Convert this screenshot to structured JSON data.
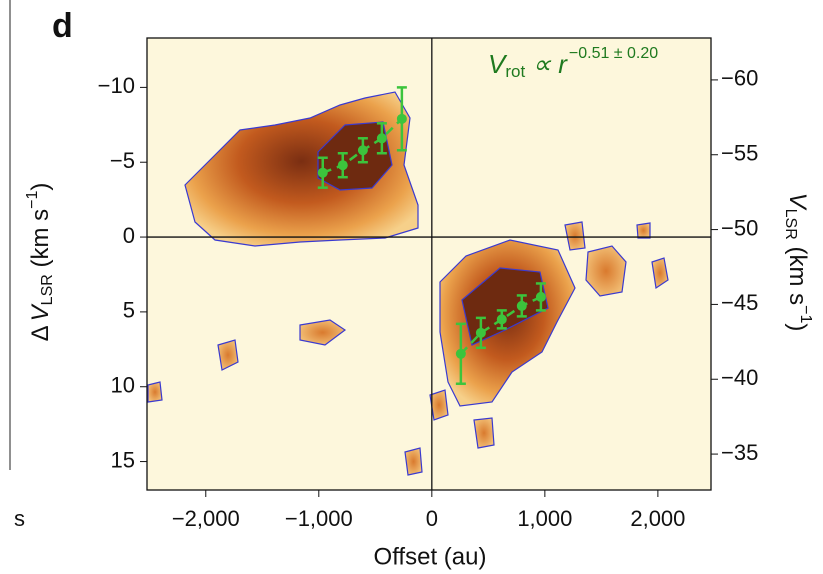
{
  "chart_data": {
    "type": "scatter",
    "panel_label": "d",
    "edge_text": "s",
    "annotation": {
      "base": "V",
      "sub": "rot",
      "mid": " ∝ r",
      "sup": "−0.51 ± 0.20",
      "color": "#1f7a1f"
    },
    "x_label": "Offset (au)",
    "y_label": {
      "delta": "Δ",
      "base": "V",
      "sub": "LSR",
      "unit": " (km s",
      "sup": "−1",
      "close": ")"
    },
    "y2_label": {
      "base": "V",
      "sub": "LSR",
      "unit": " (km s",
      "sup": "−1",
      "close": ")"
    },
    "xlim": [
      -2520,
      2470
    ],
    "xticks": [
      {
        "value": -2000,
        "label": "−2,000"
      },
      {
        "value": -1000,
        "label": "−1,000"
      },
      0,
      {
        "value": 1000,
        "label": "1,000"
      },
      {
        "value": 2000,
        "label": "2,000"
      }
    ],
    "ylim": [
      -13.3,
      16.9
    ],
    "yticks": [
      {
        "value": -10,
        "label": "−10"
      },
      {
        "value": -5,
        "label": "−5"
      },
      0,
      5,
      10,
      15
    ],
    "y2lim": [
      -62.8,
      -32.6
    ],
    "y2ticks": [
      {
        "value": -60,
        "label": "−60"
      },
      {
        "value": -55,
        "label": "−55"
      },
      {
        "value": -50,
        "label": "−50"
      },
      {
        "value": -45,
        "label": "−45"
      },
      {
        "value": -40,
        "label": "−40"
      },
      {
        "value": -35,
        "label": "−35"
      }
    ],
    "background": "#fdf7dc",
    "series": [
      {
        "color": "#3cc43c",
        "x": [
          -965,
          -788,
          -610,
          -442,
          -265
        ],
        "values": [
          -4.3,
          -4.8,
          -5.8,
          -6.6,
          -7.9
        ],
        "errors": [
          1.0,
          0.8,
          0.8,
          1.0,
          2.1
        ]
      },
      {
        "color": "#3cc43c",
        "x": [
          257,
          434,
          619,
          796,
          965
        ],
        "values": [
          7.8,
          6.4,
          5.5,
          4.6,
          4.0
        ],
        "errors": [
          2.0,
          1.0,
          0.6,
          0.7,
          0.9
        ]
      }
    ]
  }
}
